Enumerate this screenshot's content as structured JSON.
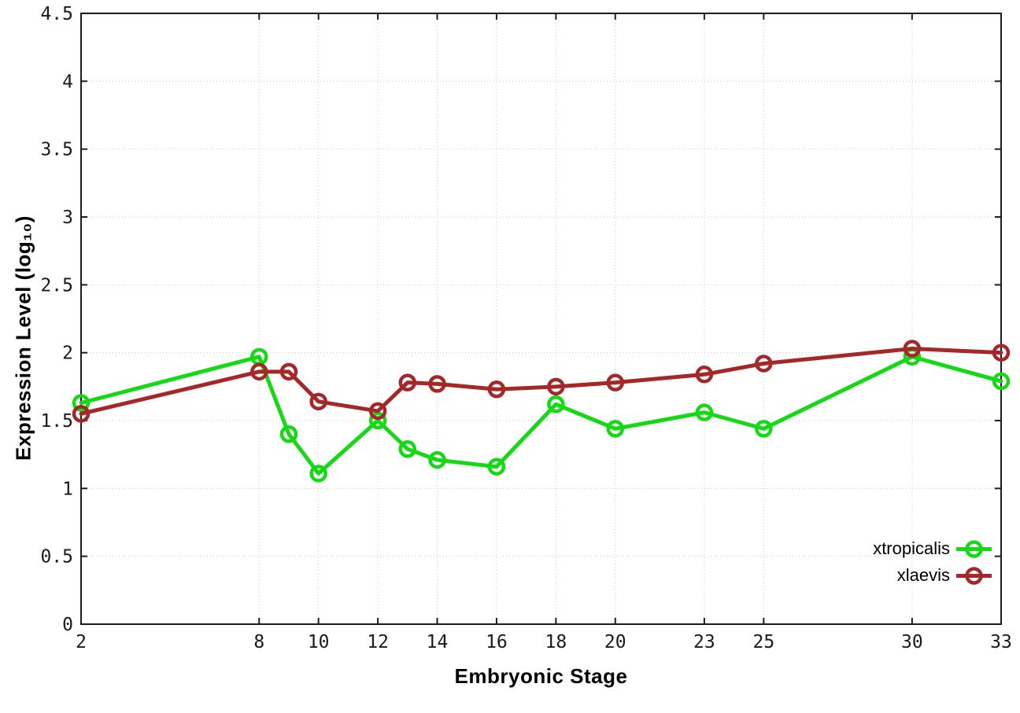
{
  "axes": {
    "x_label": "Embryonic Stage",
    "y_label": "Expression Level (log₁₀)"
  },
  "chart_data": {
    "type": "line",
    "title": "",
    "xlabel": "Embryonic Stage",
    "ylabel": "Expression Level (log10)",
    "x": [
      2,
      8,
      9,
      10,
      12,
      13,
      14,
      16,
      18,
      20,
      23,
      25,
      30,
      33
    ],
    "series": [
      {
        "name": "xtropicalis",
        "color": "#14d914",
        "values": [
          1.63,
          1.97,
          1.4,
          1.11,
          1.5,
          1.29,
          1.21,
          1.16,
          1.62,
          1.44,
          1.56,
          1.44,
          1.97,
          1.79
        ]
      },
      {
        "name": "xlaevis",
        "color": "#a42828",
        "values": [
          1.55,
          1.86,
          1.86,
          1.64,
          1.57,
          1.78,
          1.77,
          1.73,
          1.75,
          1.78,
          1.84,
          1.92,
          2.03,
          2.0
        ]
      }
    ],
    "x_ticks": [
      2,
      8,
      10,
      12,
      14,
      16,
      18,
      20,
      23,
      25,
      30,
      33
    ],
    "y_ticks": [
      0,
      0.5,
      1,
      1.5,
      2,
      2.5,
      3,
      3.5,
      4,
      4.5
    ],
    "xlim": [
      2,
      33
    ],
    "ylim": [
      0,
      4.5
    ],
    "grid": true,
    "grid_style": "dotted",
    "marker": "open-circle",
    "legend_position": "bottom-right",
    "colors": {
      "frame": "#1c1c1c",
      "grid": "#c9c9c9",
      "tick_label": "#1a1a1a"
    }
  }
}
